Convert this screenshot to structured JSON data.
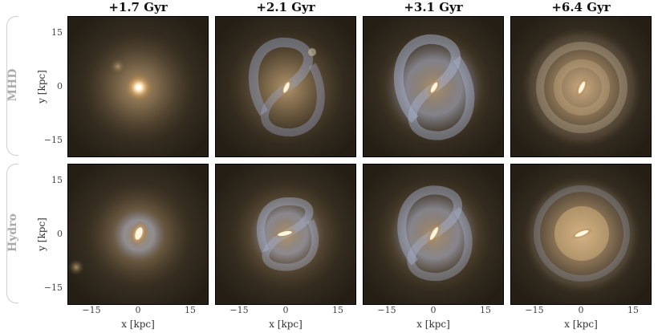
{
  "columns": [
    {
      "title": "+1.7 Gyr"
    },
    {
      "title": "+2.1 Gyr"
    },
    {
      "title": "+3.1 Gyr"
    },
    {
      "title": "+6.4 Gyr"
    }
  ],
  "rows": [
    {
      "label": "MHD"
    },
    {
      "label": "Hydro"
    }
  ],
  "axes": {
    "xlabel": "x [kpc]",
    "ylabel": "y [kpc]",
    "xticks": [
      "−15",
      "0",
      "15"
    ],
    "yticks": [
      "15",
      "0",
      "−15"
    ]
  },
  "colors": {
    "background": "#2a2318",
    "bulge": "#fff4dc",
    "disk": "#b8a98f",
    "young_stars": "#9aa6c8"
  }
}
